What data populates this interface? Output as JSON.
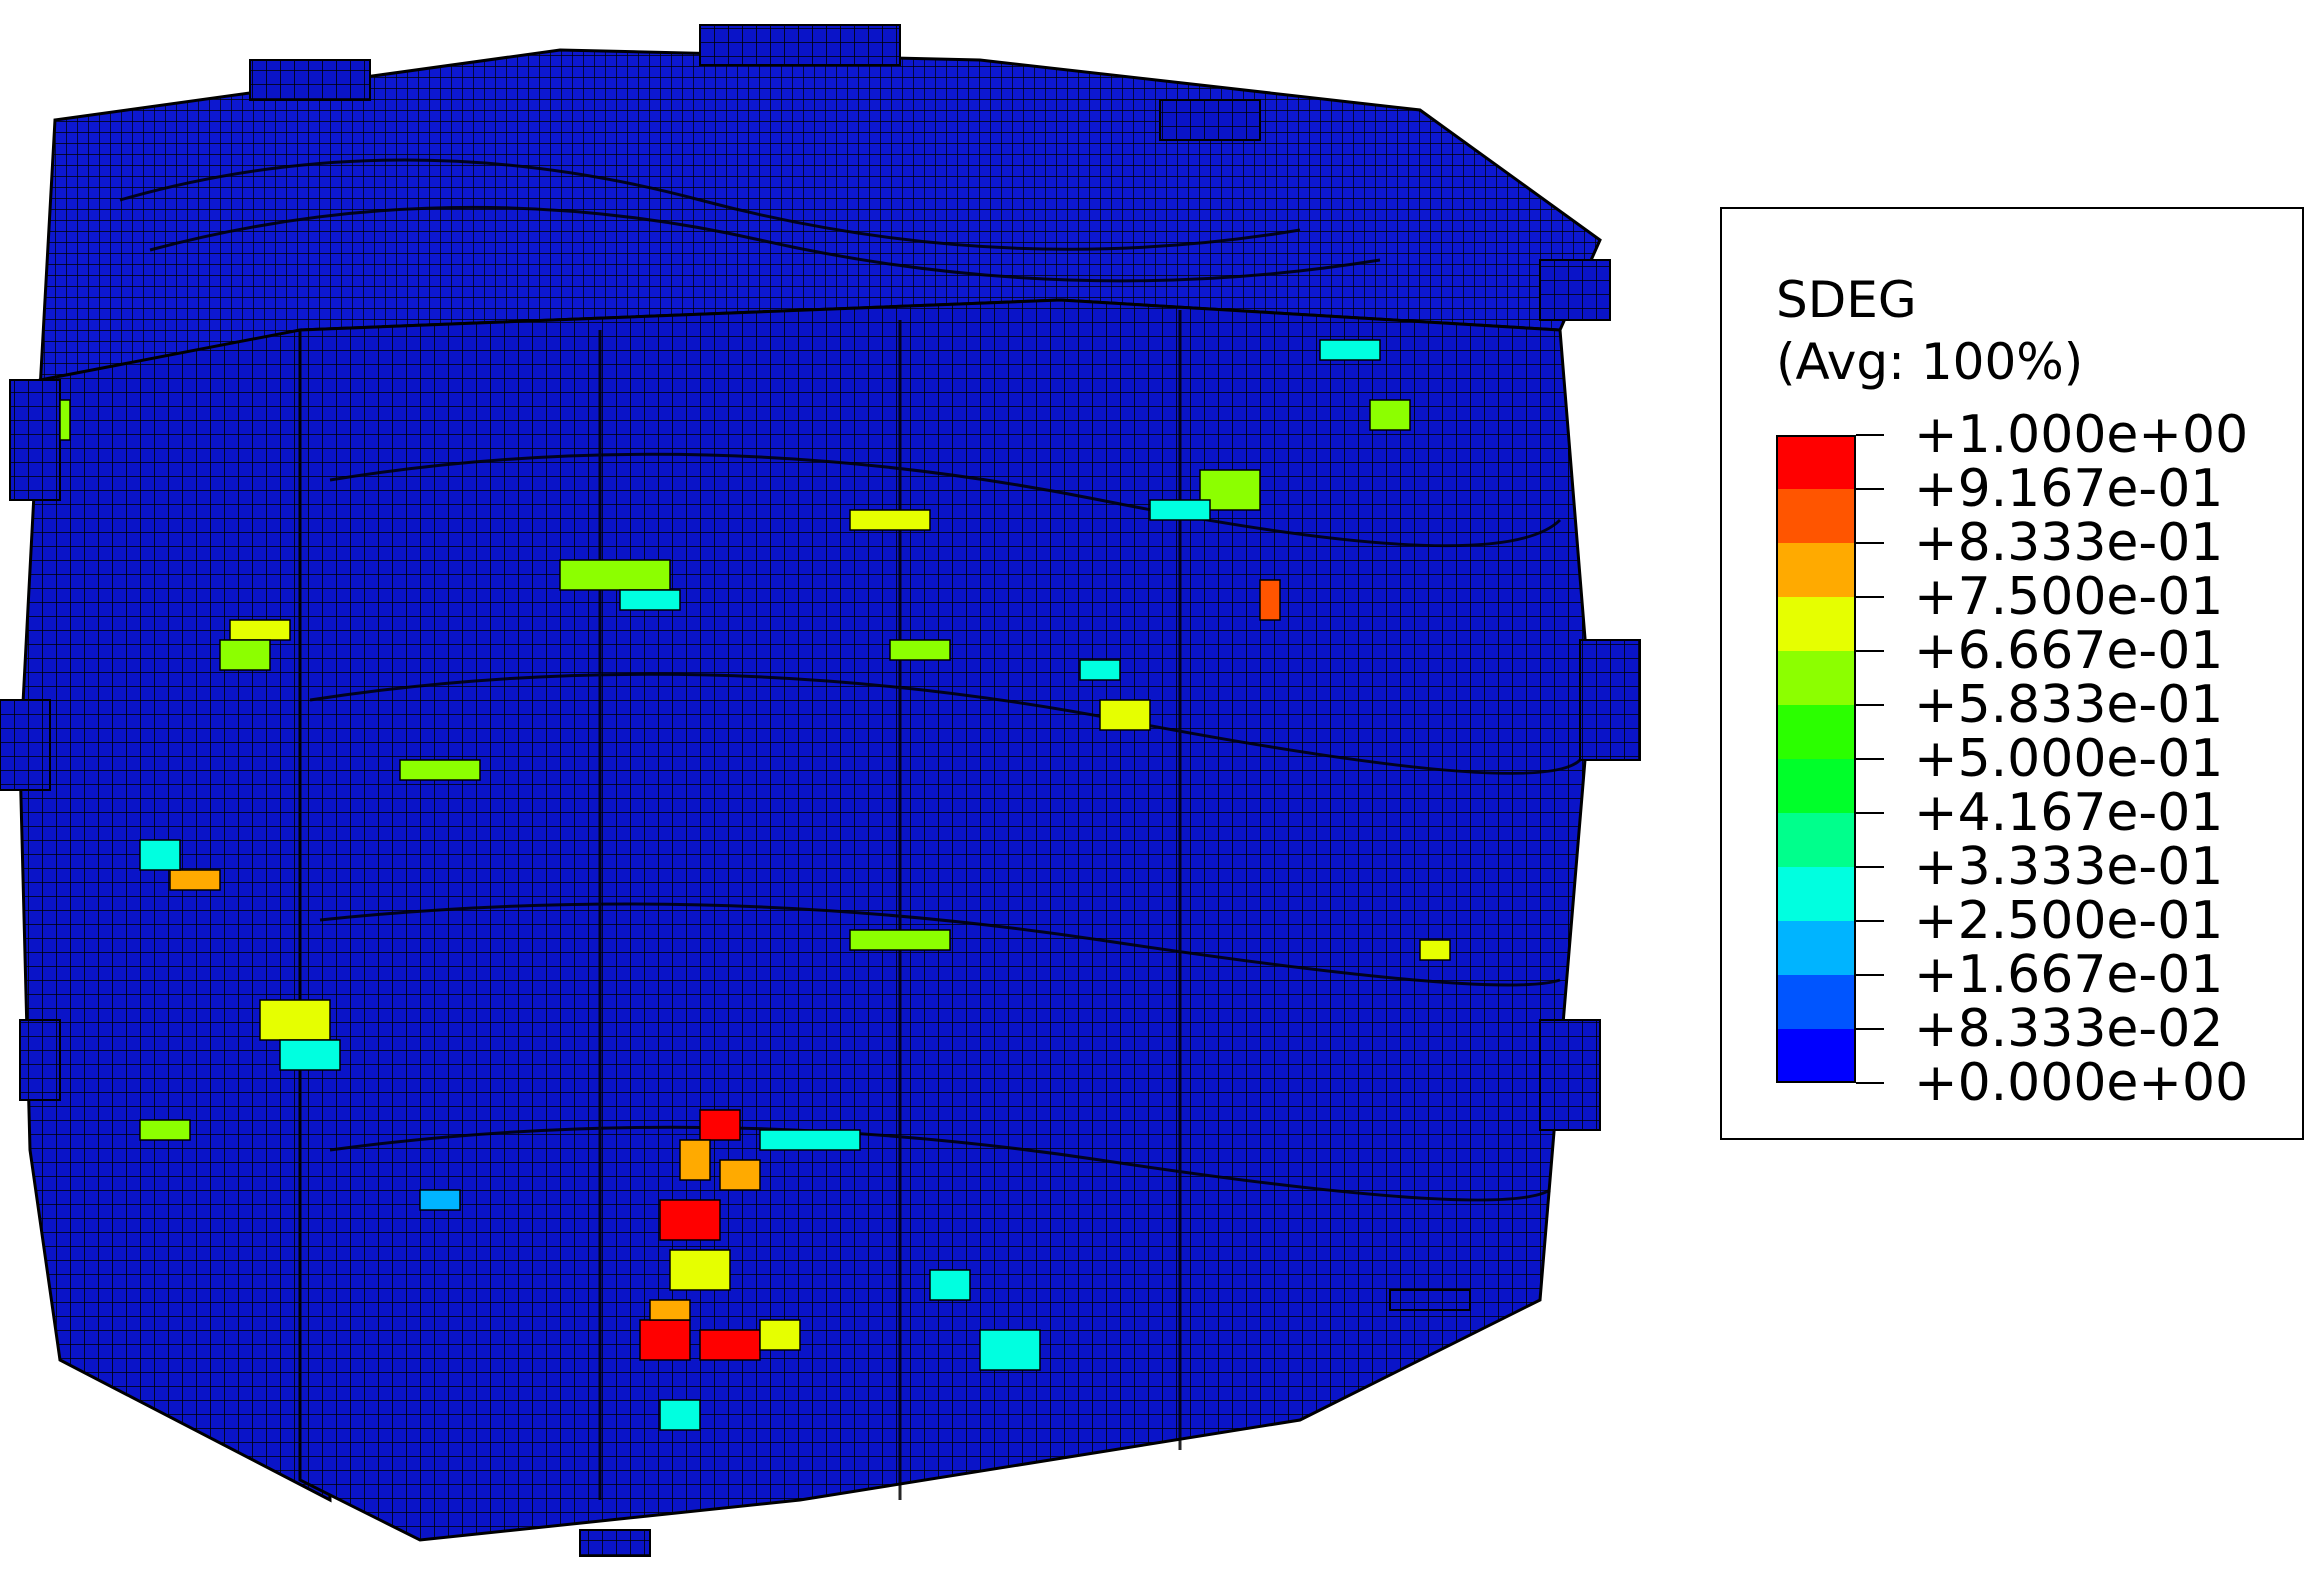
{
  "legend": {
    "title": "SDEG",
    "subtitle": "(Avg: 100%)",
    "ticks": [
      "+1.000e+00",
      "+9.167e-01",
      "+8.333e-01",
      "+7.500e-01",
      "+6.667e-01",
      "+5.833e-01",
      "+5.000e-01",
      "+4.167e-01",
      "+3.333e-01",
      "+2.500e-01",
      "+1.667e-01",
      "+8.333e-02",
      "+0.000e+00"
    ],
    "colors": [
      "#ff0000",
      "#ff5500",
      "#ffaa00",
      "#e6ff00",
      "#8cff00",
      "#2bff00",
      "#00ff2a",
      "#00ff8c",
      "#00ffe0",
      "#00b4ff",
      "#0055ff",
      "#0000ff"
    ]
  },
  "model": {
    "base_color": "#0a14c8",
    "mesh_line_color": "#000000",
    "hotspot_colors": [
      "#ff0000",
      "#ff5500",
      "#ffaa00",
      "#e6ff00",
      "#8cff00",
      "#00ff8c",
      "#00ffe0",
      "#00b4ff"
    ]
  }
}
